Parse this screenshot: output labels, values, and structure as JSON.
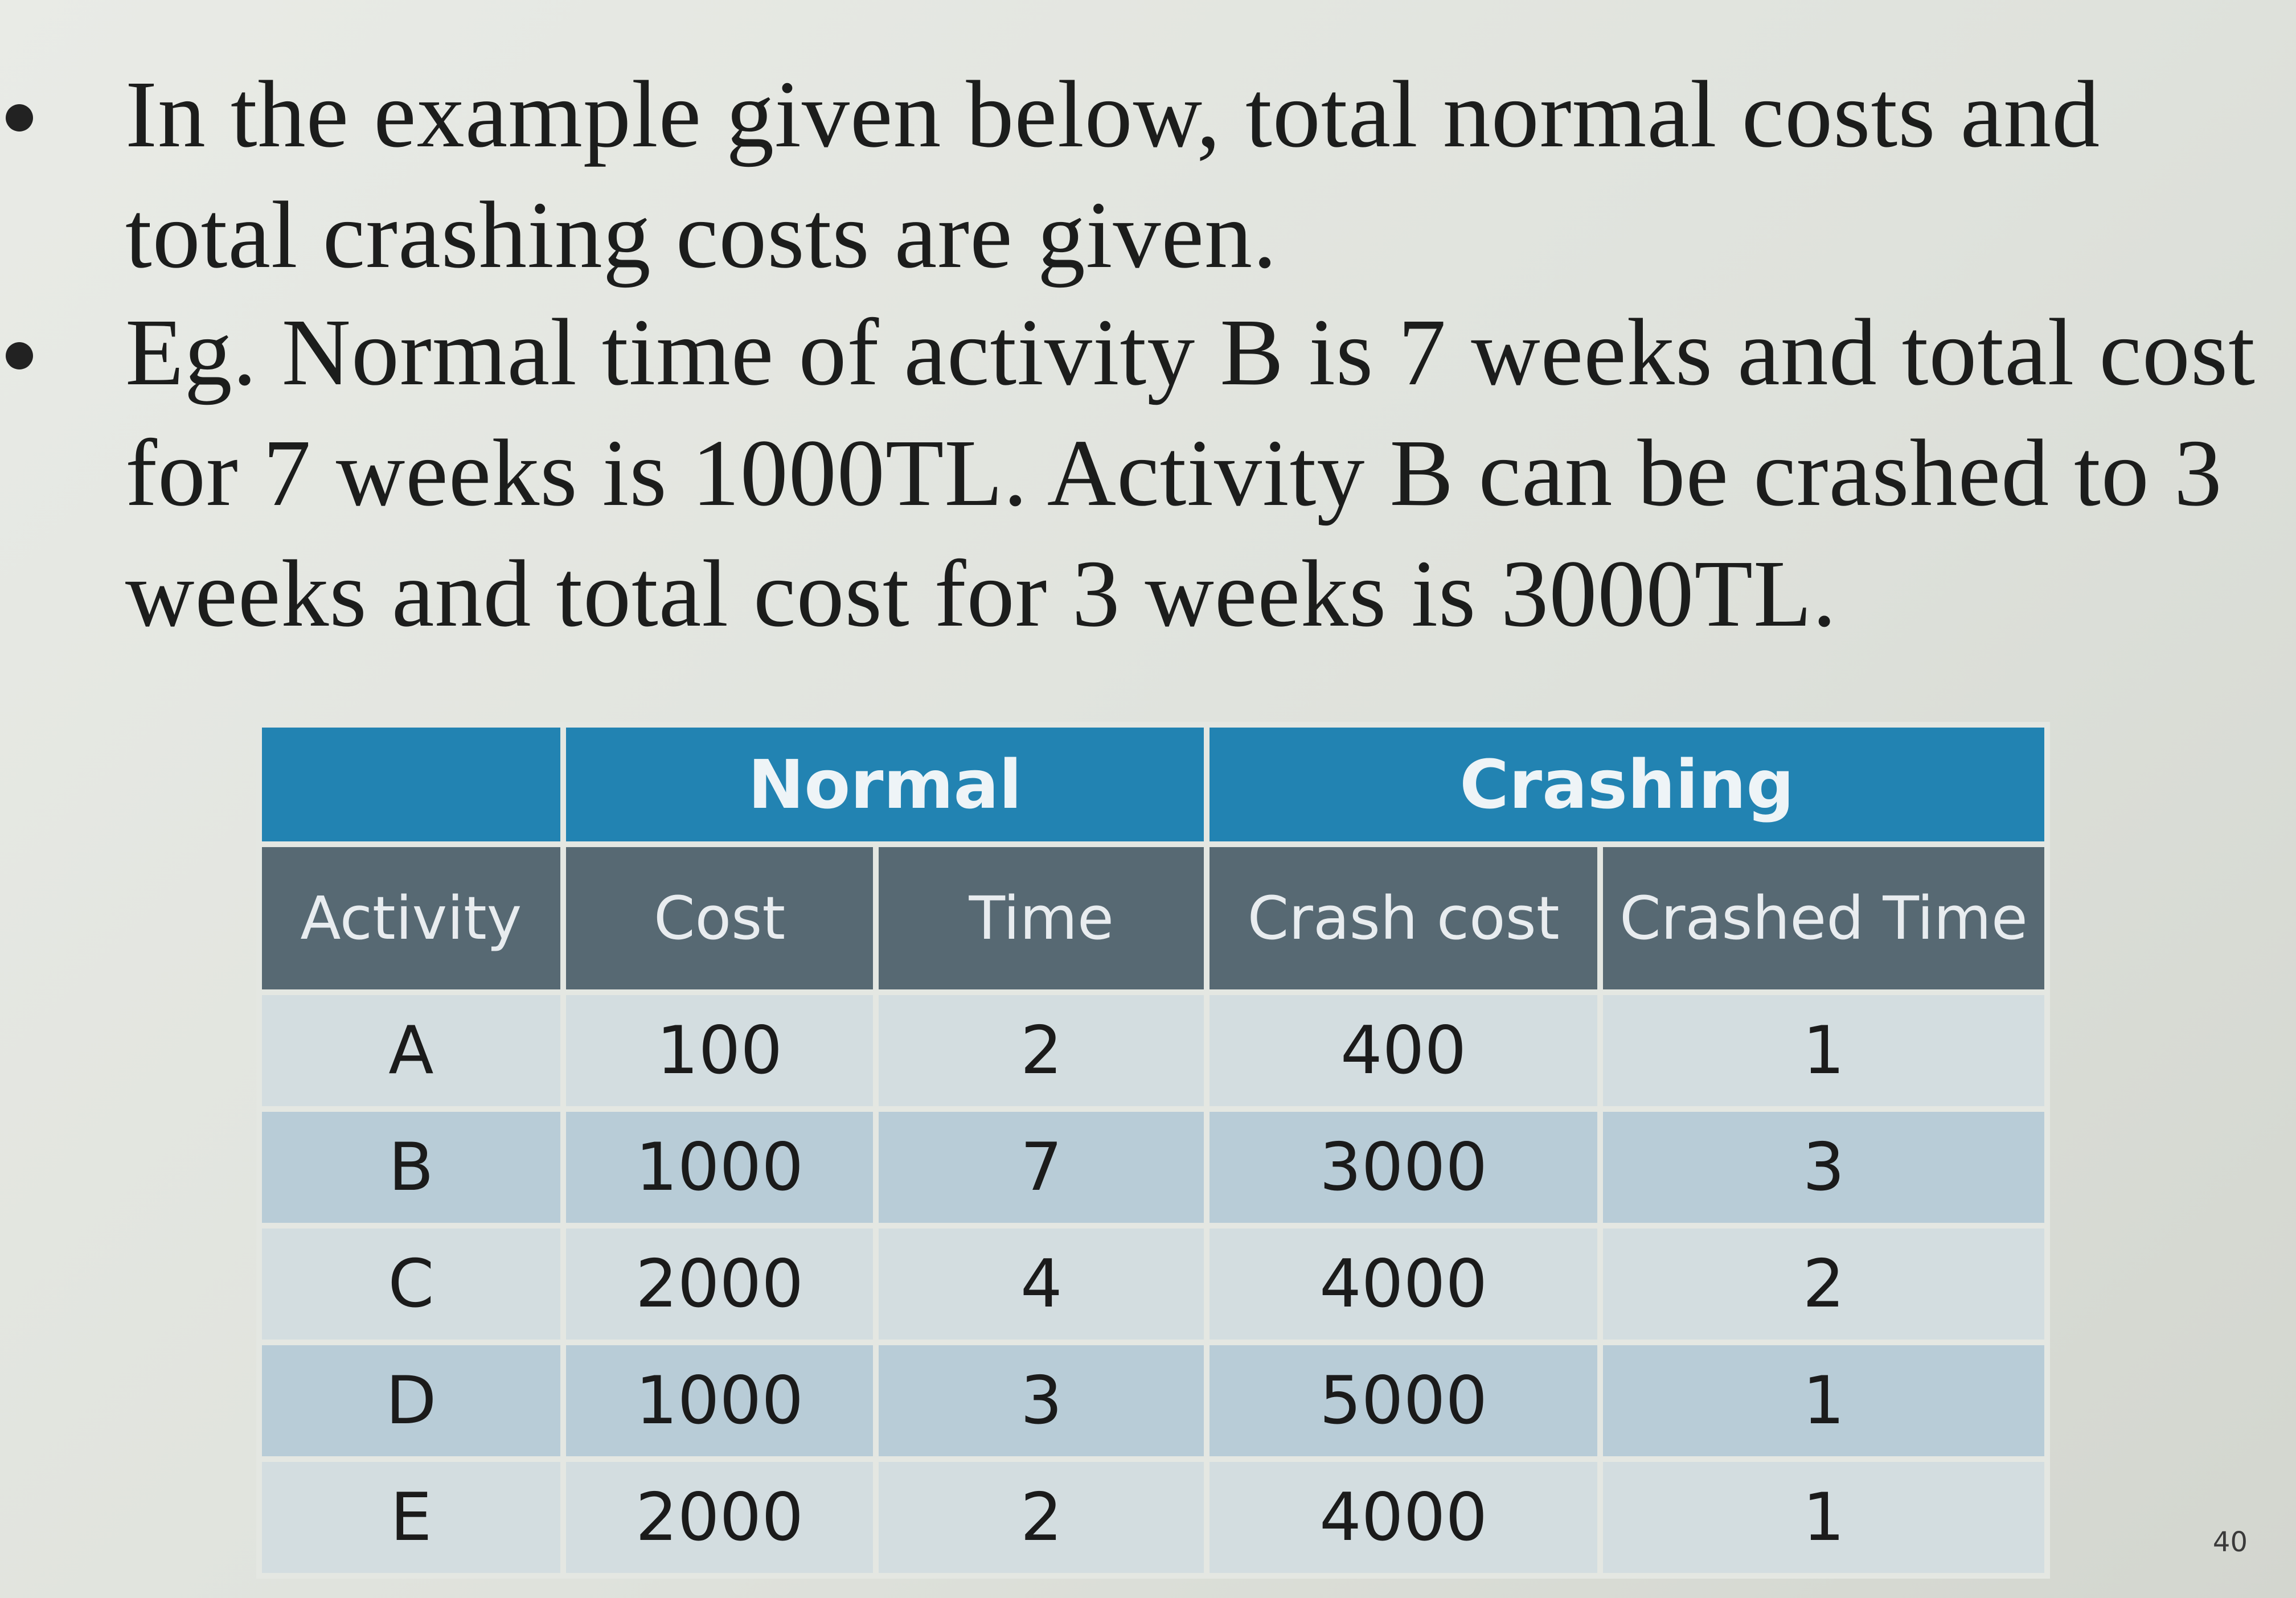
{
  "bullets": [
    "In the example given below, total normal costs and total crashing costs are given.",
    "Eg. Normal time of activity B is 7 weeks and total cost for 7 weeks is 1000TL. Activity B can be crashed to 3 weeks and total cost for 3 weeks is 3000TL."
  ],
  "table": {
    "group_headers": [
      "",
      "Normal",
      "Crashing"
    ],
    "columns": [
      "Activity",
      "Cost",
      "Time",
      "Crash cost",
      "Crashed Time"
    ],
    "rows": [
      [
        "A",
        "100",
        "2",
        "400",
        "1"
      ],
      [
        "B",
        "1000",
        "7",
        "3000",
        "3"
      ],
      [
        "C",
        "2000",
        "4",
        "4000",
        "2"
      ],
      [
        "D",
        "1000",
        "3",
        "5000",
        "1"
      ],
      [
        "E",
        "2000",
        "2",
        "4000",
        "1"
      ]
    ]
  },
  "page_number": "40",
  "colors": {
    "group_header_bg": "#2283b2",
    "column_header_bg": "#576973",
    "row_light": "#d3dde0",
    "row_dark": "#b8ccd7"
  }
}
